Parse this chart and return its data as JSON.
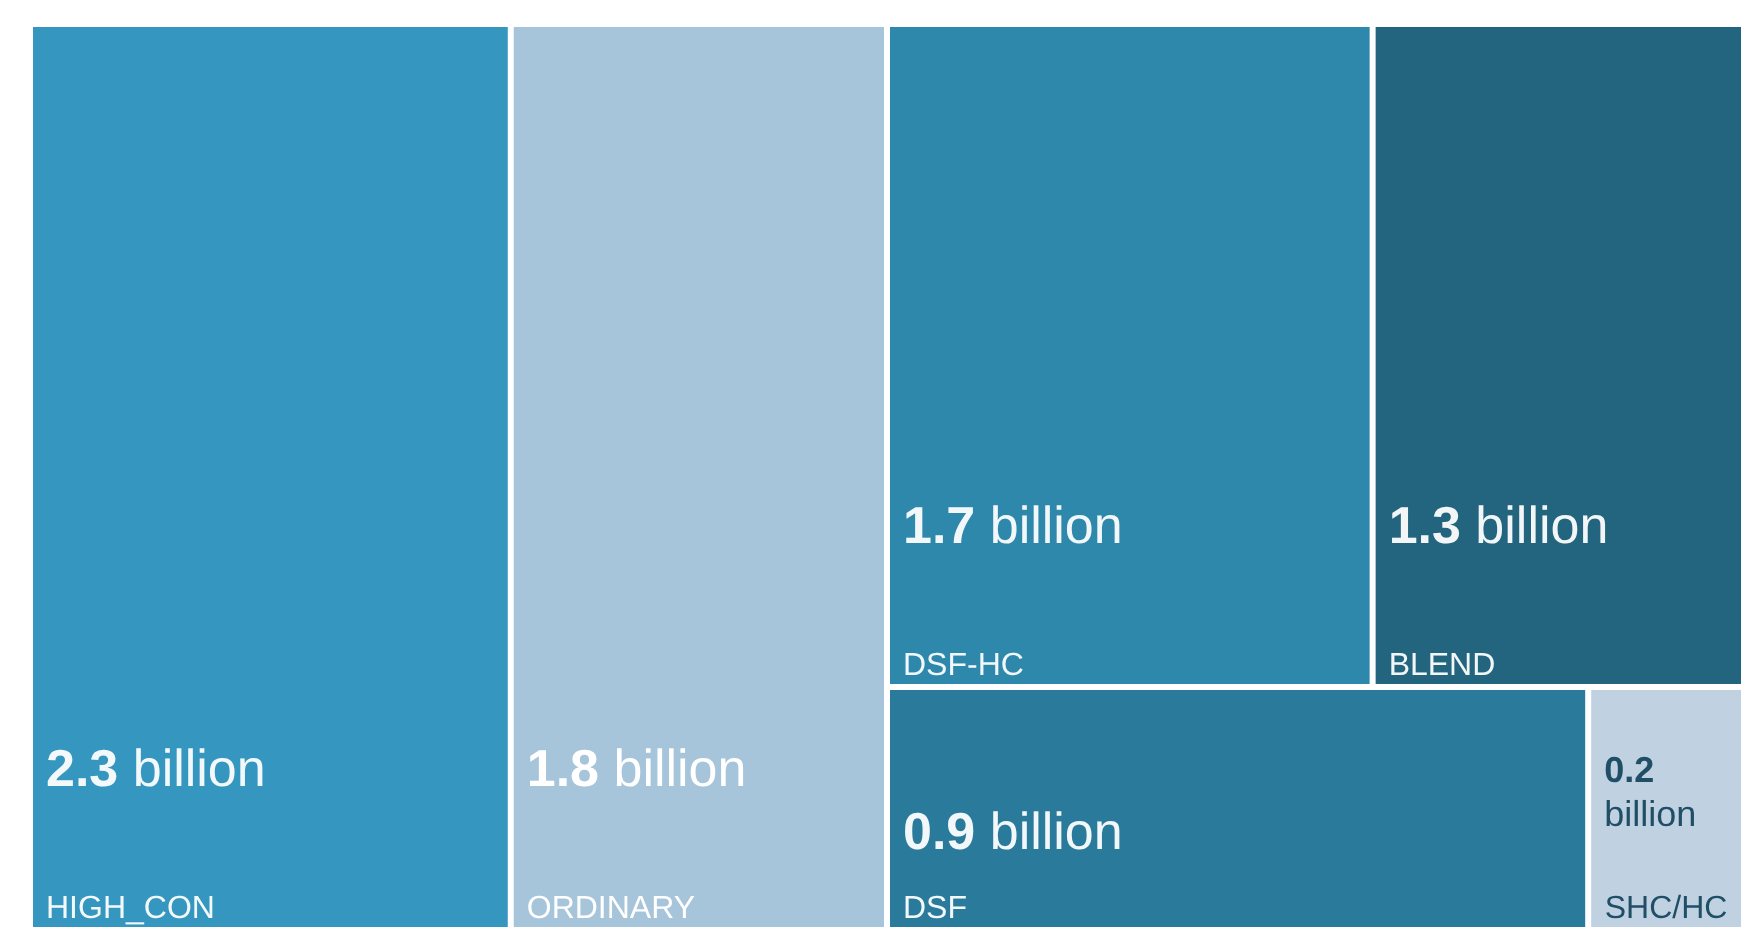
{
  "chart_data": {
    "type": "other",
    "categories": [
      "HIGH_CON",
      "ORDINARY",
      "DSF-HC",
      "BLEND",
      "DSF",
      "SHC/HC"
    ],
    "values": [
      2.3,
      1.8,
      1.7,
      1.3,
      0.9,
      0.2
    ],
    "value_labels": [
      "2.3 billion",
      "1.8 billion",
      "1.7 billion",
      "1.3 billion",
      "0.9 billion",
      "0.2 billion"
    ],
    "colors": [
      "#3597bf",
      "#a6c4da",
      "#2e88ac",
      "#23657f",
      "#2a7a9c",
      "#c0d2e2"
    ]
  }
}
